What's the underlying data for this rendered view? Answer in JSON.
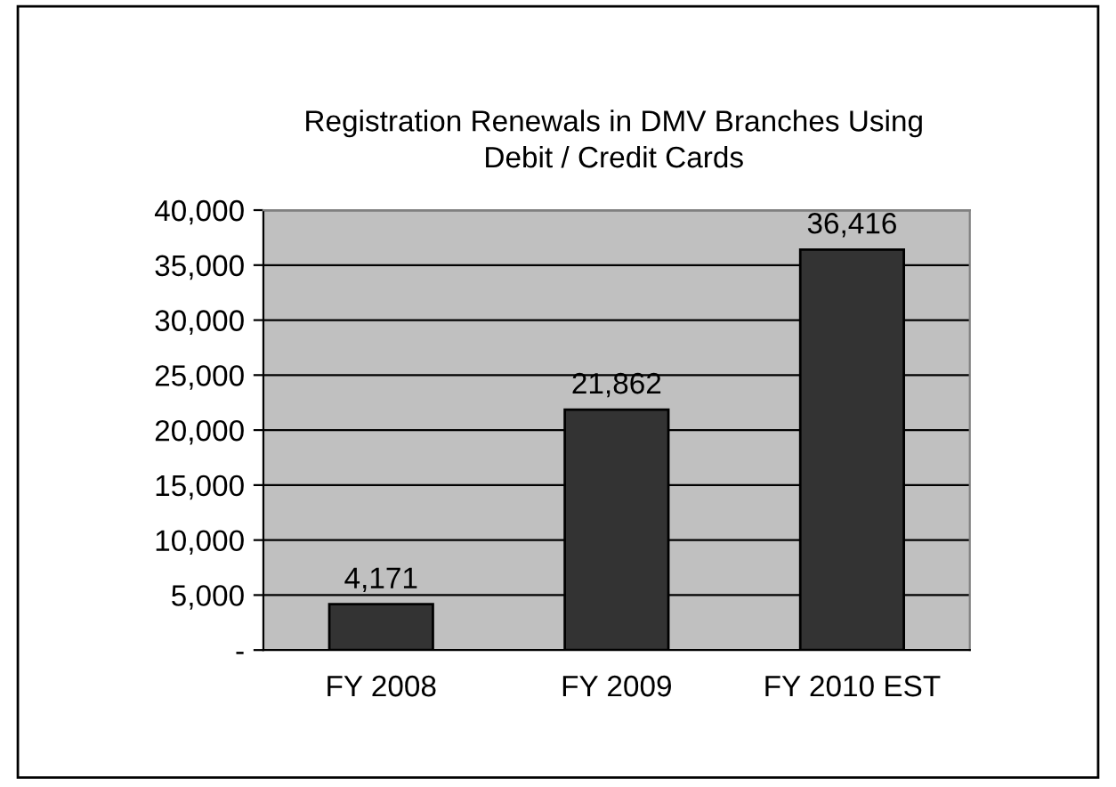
{
  "chart_data": {
    "type": "bar",
    "title": "Registration Renewals in DMV Branches Using\nDebit / Credit Cards",
    "categories": [
      "FY 2008",
      "FY 2009",
      "FY 2010 EST"
    ],
    "values": [
      4171,
      21862,
      36416
    ],
    "value_labels": [
      "4,171",
      "21,862",
      "36,416"
    ],
    "color": "#333333",
    "ylim": [
      0,
      40000
    ],
    "yticks": [
      {
        "value": 0,
        "label": "-"
      },
      {
        "value": 5000,
        "label": "5,000"
      },
      {
        "value": 10000,
        "label": "10,000"
      },
      {
        "value": 15000,
        "label": "15,000"
      },
      {
        "value": 20000,
        "label": "20,000"
      },
      {
        "value": 25000,
        "label": "25,000"
      },
      {
        "value": 30000,
        "label": "30,000"
      },
      {
        "value": 35000,
        "label": "35,000"
      },
      {
        "value": 40000,
        "label": "40,000"
      }
    ],
    "grid": "y"
  }
}
